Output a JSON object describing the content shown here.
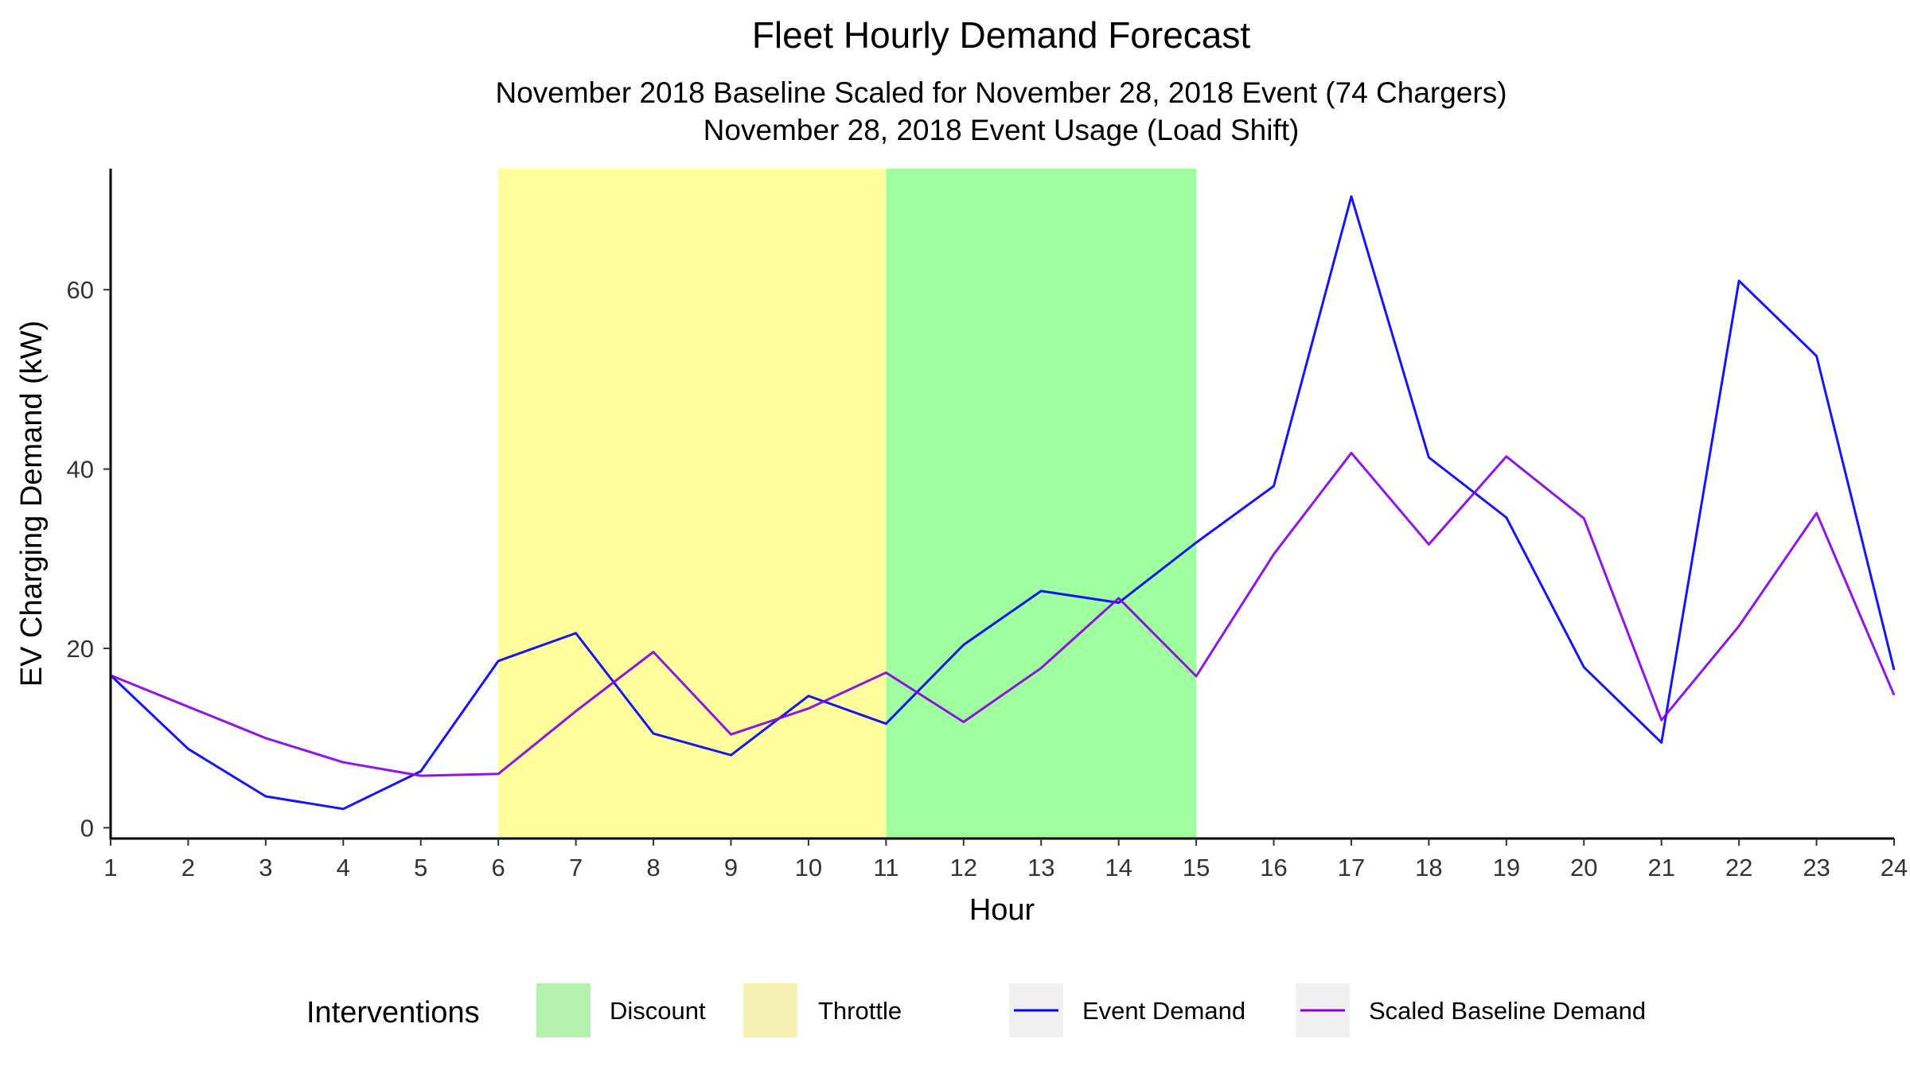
{
  "chart_data": {
    "type": "line",
    "title": "Fleet Hourly Demand Forecast",
    "subtitle_lines": [
      "November 2018 Baseline Scaled for November 28, 2018 Event (74 Chargers)",
      "November 28, 2018 Event Usage (Load Shift)"
    ],
    "xlabel": "Hour",
    "ylabel": "EV Charging Demand (kW)",
    "xlim": [
      1,
      24
    ],
    "ylim": [
      -1.2,
      73.5
    ],
    "x": [
      1,
      2,
      3,
      4,
      5,
      6,
      7,
      8,
      9,
      10,
      11,
      12,
      13,
      14,
      15,
      16,
      17,
      18,
      19,
      20,
      21,
      22,
      23,
      24
    ],
    "x_ticks": [
      1,
      2,
      3,
      4,
      5,
      6,
      7,
      8,
      9,
      10,
      11,
      12,
      13,
      14,
      15,
      16,
      17,
      18,
      19,
      20,
      21,
      22,
      23,
      24
    ],
    "y_ticks": [
      0,
      20,
      40,
      60
    ],
    "grid": false,
    "legend_position": "bottom",
    "series": [
      {
        "name": "Event Demand",
        "color": "#0000ff",
        "values": [
          17.0,
          8.8,
          3.5,
          2.1,
          6.3,
          18.6,
          21.7,
          10.5,
          8.1,
          14.7,
          11.6,
          20.4,
          26.4,
          25.1,
          31.8,
          38.1,
          70.4,
          41.3,
          34.6,
          17.9,
          9.5,
          61.0,
          52.6,
          17.6
        ]
      },
      {
        "name": "Scaled Baseline Demand",
        "color": "#8a00e6",
        "values": [
          17.0,
          13.5,
          10.0,
          7.3,
          5.8,
          6.0,
          13.0,
          19.6,
          10.4,
          13.3,
          17.3,
          11.8,
          17.8,
          25.6,
          16.9,
          30.5,
          41.8,
          31.6,
          41.4,
          34.5,
          12.0,
          22.5,
          35.1,
          14.8
        ]
      }
    ],
    "interventions": {
      "legend_title": "Interventions",
      "items": [
        {
          "name": "Discount",
          "color": "#a0ff9e",
          "legend_color": "#b5f2b0",
          "start": 11,
          "end": 15
        },
        {
          "name": "Throttle",
          "color": "#ffff9e",
          "legend_color": "#f5f2b3",
          "start": 6,
          "end": 11
        }
      ]
    }
  }
}
